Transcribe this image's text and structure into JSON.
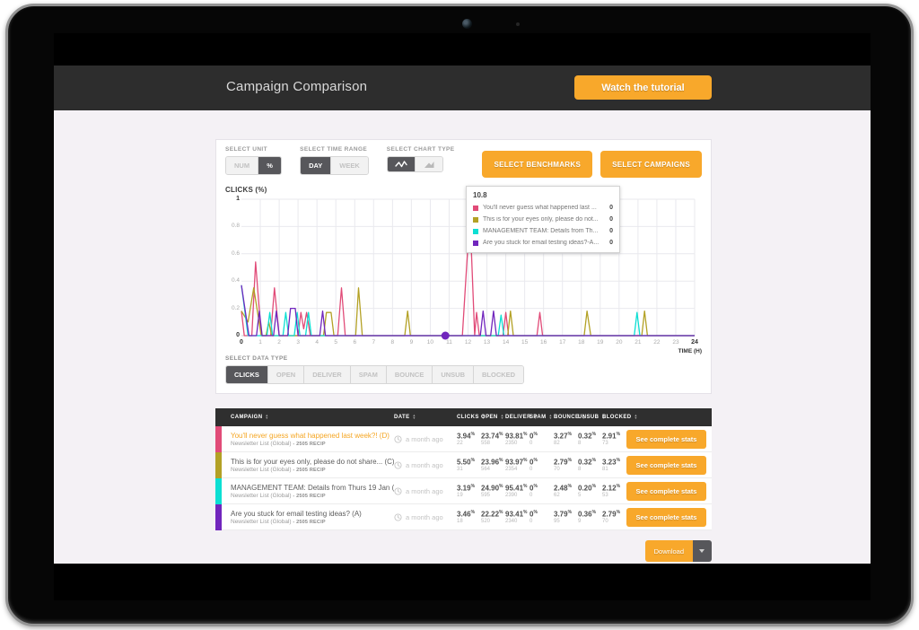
{
  "header": {
    "title": "Campaign Comparison",
    "tutorial_button": "Watch the tutorial"
  },
  "controls": {
    "unit": {
      "label": "SELECT UNIT",
      "options": [
        {
          "label": "NUM",
          "active": false
        },
        {
          "label": "%",
          "active": true
        }
      ]
    },
    "time_range": {
      "label": "SELECT TIME RANGE",
      "options": [
        {
          "label": "DAY",
          "active": true
        },
        {
          "label": "WEEK",
          "active": false
        }
      ]
    },
    "chart_type": {
      "label": "SELECT CHART TYPE",
      "options": [
        {
          "icon": "line-chart-icon",
          "active": true
        },
        {
          "icon": "area-chart-icon",
          "active": false
        }
      ]
    },
    "benchmarks_button": "SELECT BENCHMARKS",
    "campaigns_button": "SELECT CAMPAIGNS"
  },
  "chart_data": {
    "type": "line",
    "title": "CLICKS (%)",
    "xlabel": "TIME (H)",
    "ylabel": "CLICKS (%)",
    "xlim": [
      0,
      24
    ],
    "ylim": [
      0,
      1
    ],
    "x_ticks": [
      0,
      1,
      2,
      3,
      4,
      5,
      6,
      7,
      8,
      9,
      10,
      11,
      12,
      13,
      14,
      15,
      16,
      17,
      18,
      19,
      20,
      21,
      22,
      23,
      24
    ],
    "y_ticks": [
      0,
      0.2,
      0.4,
      0.6,
      0.8,
      1
    ],
    "grid": true,
    "legend_position": "tooltip-overlay",
    "hover": {
      "x": 10.8,
      "y": 0,
      "color": "#7126bd"
    },
    "series": [
      {
        "name": "You'll never guess what happened last week?! (D)",
        "color": "#e14b78",
        "points": [
          [
            0,
            0.18
          ],
          [
            0.15,
            0
          ],
          [
            0.55,
            0
          ],
          [
            0.75,
            0.54
          ],
          [
            1.05,
            0
          ],
          [
            1.55,
            0
          ],
          [
            1.75,
            0.35
          ],
          [
            2.0,
            0
          ],
          [
            3.0,
            0
          ],
          [
            3.15,
            0.17
          ],
          [
            3.3,
            0.05
          ],
          [
            3.45,
            0.17
          ],
          [
            3.65,
            0
          ],
          [
            5.1,
            0
          ],
          [
            5.3,
            0.35
          ],
          [
            5.5,
            0
          ],
          [
            11.7,
            0
          ],
          [
            11.9,
            0.45
          ],
          [
            12.1,
            0.9
          ],
          [
            12.35,
            0
          ],
          [
            12.45,
            0.17
          ],
          [
            12.6,
            0
          ],
          [
            13.85,
            0
          ],
          [
            14.0,
            0.17
          ],
          [
            14.15,
            0
          ],
          [
            15.65,
            0
          ],
          [
            15.8,
            0.17
          ],
          [
            15.95,
            0
          ],
          [
            24,
            0
          ]
        ]
      },
      {
        "name": "This is for your eyes only, please do not share... (C)",
        "color": "#b3a125",
        "points": [
          [
            0,
            0.18
          ],
          [
            0.35,
            0.1
          ],
          [
            0.65,
            0.35
          ],
          [
            1.05,
            0
          ],
          [
            1.3,
            0
          ],
          [
            1.45,
            0.1
          ],
          [
            1.6,
            0
          ],
          [
            4.35,
            0
          ],
          [
            4.5,
            0.17
          ],
          [
            4.75,
            0.17
          ],
          [
            4.9,
            0
          ],
          [
            6.05,
            0
          ],
          [
            6.2,
            0.35
          ],
          [
            6.4,
            0
          ],
          [
            8.65,
            0
          ],
          [
            8.8,
            0.18
          ],
          [
            8.95,
            0
          ],
          [
            14.1,
            0
          ],
          [
            14.25,
            0.18
          ],
          [
            14.4,
            0
          ],
          [
            18.15,
            0
          ],
          [
            18.3,
            0.18
          ],
          [
            18.5,
            0
          ],
          [
            21.2,
            0
          ],
          [
            21.35,
            0.18
          ],
          [
            21.5,
            0
          ],
          [
            24,
            0
          ]
        ]
      },
      {
        "name": "MANAGEMENT TEAM: Details from Thurs 19 Jan (B)",
        "color": "#0cdfd3",
        "points": [
          [
            0,
            0.37
          ],
          [
            0.35,
            0
          ],
          [
            1.35,
            0
          ],
          [
            1.5,
            0.17
          ],
          [
            1.65,
            0
          ],
          [
            2.2,
            0
          ],
          [
            2.35,
            0.17
          ],
          [
            2.5,
            0
          ],
          [
            2.8,
            0
          ],
          [
            2.95,
            0.17
          ],
          [
            3.1,
            0
          ],
          [
            3.4,
            0
          ],
          [
            3.55,
            0.17
          ],
          [
            3.7,
            0
          ],
          [
            13.6,
            0
          ],
          [
            13.75,
            0.15
          ],
          [
            13.9,
            0
          ],
          [
            20.8,
            0
          ],
          [
            20.95,
            0.17
          ],
          [
            21.1,
            0
          ],
          [
            24,
            0
          ]
        ]
      },
      {
        "name": "Are you stuck for email testing ideas? (A)",
        "color": "#7126bd",
        "points": [
          [
            0,
            0.37
          ],
          [
            0.4,
            0
          ],
          [
            0.8,
            0
          ],
          [
            0.95,
            0.18
          ],
          [
            1.1,
            0
          ],
          [
            1.7,
            0
          ],
          [
            1.85,
            0.18
          ],
          [
            2.0,
            0
          ],
          [
            2.45,
            0
          ],
          [
            2.6,
            0.2
          ],
          [
            2.85,
            0.2
          ],
          [
            3.0,
            0
          ],
          [
            4.15,
            0
          ],
          [
            4.3,
            0.18
          ],
          [
            4.45,
            0
          ],
          [
            12.65,
            0
          ],
          [
            12.8,
            0.18
          ],
          [
            12.95,
            0
          ],
          [
            13.2,
            0
          ],
          [
            13.35,
            0.18
          ],
          [
            13.5,
            0
          ],
          [
            24,
            0
          ]
        ]
      }
    ]
  },
  "tooltip": {
    "title": "10.8",
    "rows": [
      {
        "color": "#e14b78",
        "label": "You'll never guess what happened last ...",
        "value": "0"
      },
      {
        "color": "#b3a125",
        "label": "This is for your eyes only, please do not...",
        "value": "0"
      },
      {
        "color": "#0cdfd3",
        "label": "MANAGEMENT TEAM: Details from Th...",
        "value": "0"
      },
      {
        "color": "#7126bd",
        "label": "Are you stuck for email testing ideas?-A...",
        "value": "0"
      }
    ]
  },
  "data_type": {
    "label": "SELECT DATA TYPE",
    "options": [
      {
        "label": "CLICKS",
        "active": true
      },
      {
        "label": "OPEN",
        "active": false
      },
      {
        "label": "DELIVER",
        "active": false
      },
      {
        "label": "SPAM",
        "active": false
      },
      {
        "label": "BOUNCE",
        "active": false
      },
      {
        "label": "UNSUB",
        "active": false
      },
      {
        "label": "BLOCKED",
        "active": false
      }
    ]
  },
  "table": {
    "columns": [
      "CAMPAIGN",
      "DATE",
      "CLICKS",
      "OPEN",
      "DELIVER",
      "SPAM",
      "BOUNCE",
      "UNSUB",
      "BLOCKED"
    ],
    "percent_suffix": "%",
    "action_label": "See complete stats",
    "rows": [
      {
        "color": "#e14b78",
        "title": "You'll never guess what happened last week?! (D)",
        "title_color": "#f5a623",
        "list": "Newsletter List (Global)",
        "recipients": "- 2505 RECIP",
        "date": "a month ago",
        "stats": [
          {
            "pct": "3.94",
            "num": "22"
          },
          {
            "pct": "23.74",
            "num": "558"
          },
          {
            "pct": "93.81",
            "num": "2350"
          },
          {
            "pct": "0",
            "num": "0"
          },
          {
            "pct": "3.27",
            "num": "82"
          },
          {
            "pct": "0.32",
            "num": "8"
          },
          {
            "pct": "2.91",
            "num": "73"
          }
        ]
      },
      {
        "color": "#b3a125",
        "title": "This is for your eyes only, please do not share... (C)",
        "title_color": "#5c5c5c",
        "list": "Newsletter List (Global)",
        "recipients": "- 2505 RECIP",
        "date": "a month ago",
        "stats": [
          {
            "pct": "5.50",
            "num": "31"
          },
          {
            "pct": "23.96",
            "num": "564"
          },
          {
            "pct": "93.97",
            "num": "2354"
          },
          {
            "pct": "0",
            "num": "0"
          },
          {
            "pct": "2.79",
            "num": "70"
          },
          {
            "pct": "0.32",
            "num": "8"
          },
          {
            "pct": "3.23",
            "num": "81"
          }
        ]
      },
      {
        "color": "#0cdfd3",
        "title": "MANAGEMENT TEAM: Details from Thurs 19 Jan (B)",
        "title_color": "#5c5c5c",
        "list": "Newsletter List (Global)",
        "recipients": "- 2505 RECIP",
        "date": "a month ago",
        "stats": [
          {
            "pct": "3.19",
            "num": "19"
          },
          {
            "pct": "24.90",
            "num": "595"
          },
          {
            "pct": "95.41",
            "num": "2390"
          },
          {
            "pct": "0",
            "num": "0"
          },
          {
            "pct": "2.48",
            "num": "62"
          },
          {
            "pct": "0.20",
            "num": "5"
          },
          {
            "pct": "2.12",
            "num": "53"
          }
        ]
      },
      {
        "color": "#7126bd",
        "title": "Are you stuck for email testing ideas? (A)",
        "title_color": "#5c5c5c",
        "list": "Newsletter List (Global)",
        "recipients": "- 2505 RECIP",
        "date": "a month ago",
        "stats": [
          {
            "pct": "3.46",
            "num": "18"
          },
          {
            "pct": "22.22",
            "num": "520"
          },
          {
            "pct": "93.41",
            "num": "2340"
          },
          {
            "pct": "0",
            "num": "0"
          },
          {
            "pct": "3.79",
            "num": "95"
          },
          {
            "pct": "0.36",
            "num": "9"
          },
          {
            "pct": "2.79",
            "num": "70"
          }
        ]
      }
    ]
  },
  "download": {
    "label": "Download"
  }
}
